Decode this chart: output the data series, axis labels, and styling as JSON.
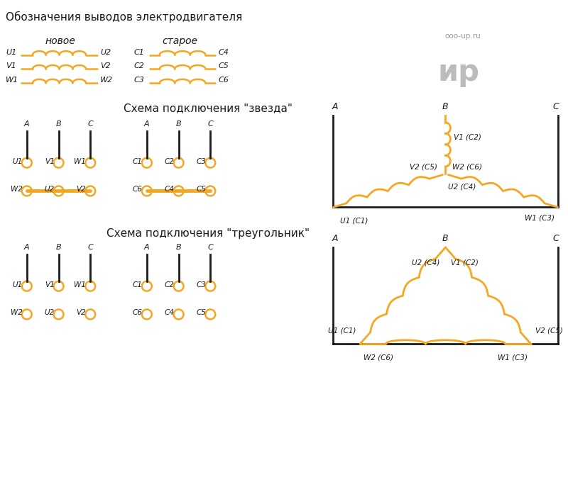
{
  "title": "Обозначения выводов электродвигателя",
  "orange": "#F5A623",
  "black": "#1a1a1a",
  "gray": "#999999",
  "bg": "#ffffff",
  "section1_title": "новое",
  "section2_title": "старое",
  "star_title": "Схема подключения \"звезда\"",
  "triangle_title": "Схема подключения \"треугольник\"",
  "watermark_line1": "ooo-up.ru",
  "watermark_line2": "ир"
}
